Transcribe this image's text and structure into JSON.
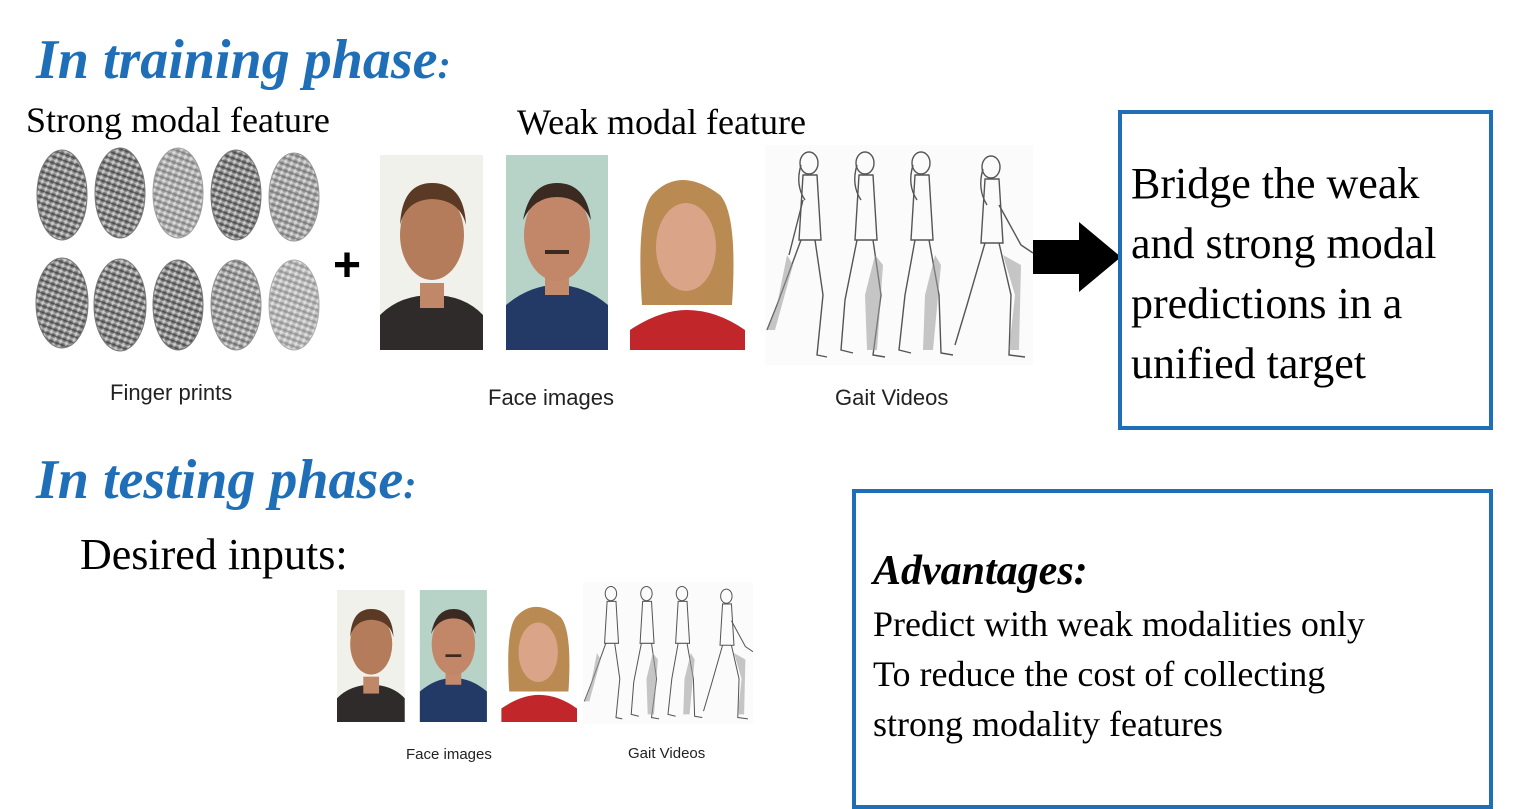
{
  "training": {
    "title": "In training phase",
    "colon": ":",
    "strong_label": "Strong modal feature",
    "weak_label": "Weak modal feature",
    "plus": "+",
    "fingerprints_caption": "Finger prints",
    "face_caption": "Face images",
    "gait_caption": "Gait Videos"
  },
  "bridge_box": {
    "lines": [
      "Bridge the weak",
      "and strong modal",
      "predictions in a",
      "unified target"
    ]
  },
  "testing": {
    "title": "In testing phase",
    "colon": ":",
    "desired_label": "Desired inputs:",
    "face_caption": "Face images",
    "gait_caption": "Gait Videos"
  },
  "advantages": {
    "title": "Advantages:",
    "lines": [
      "Predict with weak modalities only",
      "To reduce the cost of collecting",
      "strong modality features"
    ]
  },
  "colors": {
    "accent_blue": "#1f6fb8",
    "text": "#000000"
  }
}
